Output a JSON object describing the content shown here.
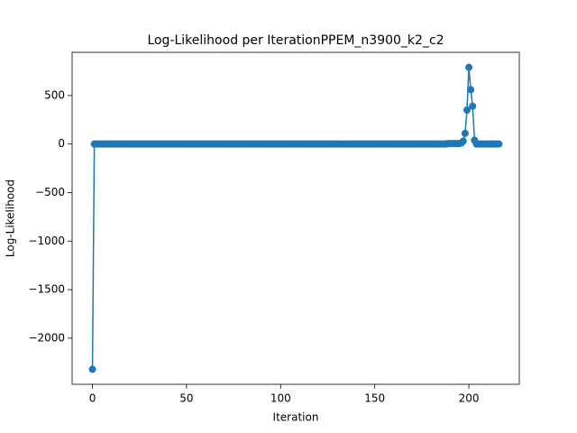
{
  "chart_data": {
    "type": "line",
    "title": "Log-Likelihood per IterationPPEM_n3900_k2_c2",
    "xlabel": "Iteration",
    "ylabel": "Log-Likelihood",
    "x": [
      0,
      1,
      2,
      3,
      4,
      5,
      6,
      7,
      8,
      9,
      10,
      11,
      12,
      13,
      14,
      15,
      16,
      17,
      18,
      19,
      20,
      21,
      22,
      23,
      24,
      25,
      26,
      27,
      28,
      29,
      30,
      31,
      32,
      33,
      34,
      35,
      36,
      37,
      38,
      39,
      40,
      41,
      42,
      43,
      44,
      45,
      46,
      47,
      48,
      49,
      50,
      51,
      52,
      53,
      54,
      55,
      56,
      57,
      58,
      59,
      60,
      61,
      62,
      63,
      64,
      65,
      66,
      67,
      68,
      69,
      70,
      71,
      72,
      73,
      74,
      75,
      76,
      77,
      78,
      79,
      80,
      81,
      82,
      83,
      84,
      85,
      86,
      87,
      88,
      89,
      90,
      91,
      92,
      93,
      94,
      95,
      96,
      97,
      98,
      99,
      100,
      101,
      102,
      103,
      104,
      105,
      106,
      107,
      108,
      109,
      110,
      111,
      112,
      113,
      114,
      115,
      116,
      117,
      118,
      119,
      120,
      121,
      122,
      123,
      124,
      125,
      126,
      127,
      128,
      129,
      130,
      131,
      132,
      133,
      134,
      135,
      136,
      137,
      138,
      139,
      140,
      141,
      142,
      143,
      144,
      145,
      146,
      147,
      148,
      149,
      150,
      151,
      152,
      153,
      154,
      155,
      156,
      157,
      158,
      159,
      160,
      161,
      162,
      163,
      164,
      165,
      166,
      167,
      168,
      169,
      170,
      171,
      172,
      173,
      174,
      175,
      176,
      177,
      178,
      179,
      180,
      181,
      182,
      183,
      184,
      185,
      186,
      187,
      188,
      189,
      190,
      191,
      192,
      193,
      194,
      195,
      196,
      197,
      198,
      199,
      200,
      201,
      202,
      203,
      204,
      205,
      206,
      207,
      208,
      209,
      210,
      211,
      212,
      213,
      214,
      215,
      216
    ],
    "series": [
      {
        "name": "Log-Likelihood",
        "color": "#1f77b4",
        "values": [
          -2320,
          0,
          0,
          0,
          0,
          0,
          0,
          0,
          0,
          0,
          0,
          0,
          0,
          0,
          0,
          0,
          0,
          0,
          0,
          0,
          0,
          0,
          0,
          0,
          0,
          0,
          0,
          0,
          0,
          0,
          0,
          0,
          0,
          0,
          0,
          0,
          0,
          0,
          0,
          0,
          0,
          0,
          0,
          0,
          0,
          0,
          0,
          0,
          0,
          0,
          0,
          0,
          0,
          0,
          0,
          0,
          0,
          0,
          0,
          0,
          0,
          0,
          0,
          0,
          0,
          0,
          0,
          0,
          0,
          0,
          0,
          0,
          0,
          0,
          0,
          0,
          0,
          0,
          0,
          0,
          0,
          0,
          0,
          0,
          0,
          0,
          0,
          0,
          0,
          0,
          0,
          0,
          0,
          0,
          0,
          0,
          0,
          0,
          0,
          0,
          0,
          0,
          0,
          0,
          0,
          0,
          0,
          0,
          0,
          0,
          0,
          0,
          0,
          0,
          0,
          0,
          0,
          0,
          0,
          0,
          0,
          0,
          0,
          0,
          0,
          0,
          0,
          0,
          0,
          0,
          0,
          0,
          0,
          0,
          0,
          0,
          0,
          0,
          0,
          0,
          0,
          0,
          0,
          0,
          0,
          0,
          0,
          0,
          0,
          0,
          0,
          0,
          0,
          0,
          0,
          0,
          0,
          0,
          0,
          0,
          0,
          0,
          0,
          0,
          0,
          0,
          0,
          0,
          0,
          0,
          0,
          0,
          0,
          0,
          0,
          0,
          0,
          0,
          0,
          0,
          0,
          0,
          0,
          0,
          0,
          0,
          0,
          0,
          0,
          5,
          5,
          5,
          5,
          5,
          5,
          5,
          10,
          30,
          110,
          350,
          790,
          560,
          390,
          40,
          0,
          0,
          0,
          0,
          0,
          0,
          0,
          0,
          0,
          0,
          0,
          0,
          0
        ]
      }
    ],
    "xlim": [
      -10.8,
      226.8
    ],
    "ylim": [
      -2475,
      945
    ],
    "xticks": [
      0,
      50,
      100,
      150,
      200
    ],
    "yticks": [
      {
        "value": -2000,
        "label": "−2000"
      },
      {
        "value": -1500,
        "label": "−1500"
      },
      {
        "value": -1000,
        "label": "−1000"
      },
      {
        "value": -500,
        "label": "−500"
      },
      0,
      500
    ]
  }
}
